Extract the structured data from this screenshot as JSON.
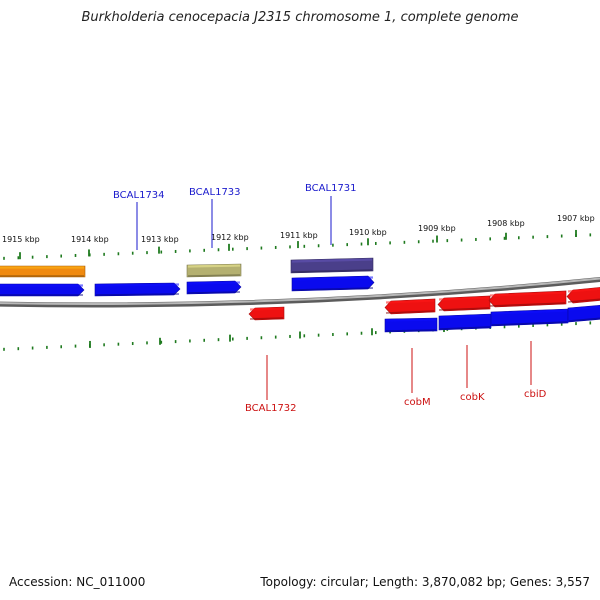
{
  "title": "Burkholderia cenocepacia J2315 chromosome 1, complete genome",
  "footer": {
    "accession": "Accession: NC_011000",
    "info": "Topology: circular; Length: 3,870,082 bp; Genes: 3,557"
  },
  "colors": {
    "backbone": "#8a8a8a",
    "ticks": "#1f7a1f",
    "forward_label": "#1a1acc",
    "reverse_label": "#cc1111",
    "cds": "#0a0aee",
    "gene_red": "#ee1111",
    "gene_orange": "#f08a10",
    "gene_olive": "#b4b070",
    "gene_purple": "#4a3f8a"
  },
  "ticks": [
    "1915 kbp",
    "1914 kbp",
    "1913 kbp",
    "1912 kbp",
    "1911 kbp",
    "1910 kbp",
    "1909 kbp",
    "1908 kbp",
    "1907 kbp"
  ],
  "gene_labels": {
    "forward": [
      "BCAL1734",
      "BCAL1733",
      "BCAL1731"
    ],
    "reverse": [
      "BCAL1732",
      "cobM",
      "cobK",
      "cbiD"
    ]
  }
}
